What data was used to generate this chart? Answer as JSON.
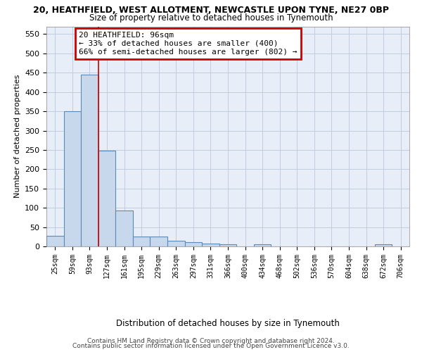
{
  "title": "20, HEATHFIELD, WEST ALLOTMENT, NEWCASTLE UPON TYNE, NE27 0BP",
  "subtitle": "Size of property relative to detached houses in Tynemouth",
  "xlabel": "Distribution of detached houses by size in Tynemouth",
  "ylabel": "Number of detached properties",
  "bin_labels": [
    "25sqm",
    "59sqm",
    "93sqm",
    "127sqm",
    "161sqm",
    "195sqm",
    "229sqm",
    "263sqm",
    "297sqm",
    "331sqm",
    "366sqm",
    "400sqm",
    "434sqm",
    "468sqm",
    "502sqm",
    "536sqm",
    "570sqm",
    "604sqm",
    "638sqm",
    "672sqm",
    "706sqm"
  ],
  "bar_heights": [
    27,
    350,
    445,
    248,
    93,
    25,
    25,
    14,
    11,
    8,
    6,
    0,
    5,
    0,
    0,
    0,
    0,
    0,
    0,
    5,
    0
  ],
  "bar_color": "#c8d8ec",
  "bar_edge_color": "#5a8ab8",
  "property_label": "20 HEATHFIELD: 96sqm",
  "annotation_line1": "← 33% of detached houses are smaller (400)",
  "annotation_line2": "66% of semi-detached houses are larger (802) →",
  "annotation_box_color": "#ffffff",
  "annotation_box_edge": "#cc0000",
  "line_color": "#cc0000",
  "prop_bin_index": 2,
  "ylim": [
    0,
    570
  ],
  "yticks": [
    0,
    50,
    100,
    150,
    200,
    250,
    300,
    350,
    400,
    450,
    500,
    550
  ],
  "footer_line1": "Contains HM Land Registry data © Crown copyright and database right 2024.",
  "footer_line2": "Contains public sector information licensed under the Open Government Licence v3.0.",
  "background_color": "#e8eef8",
  "grid_color": "#c0cce0"
}
